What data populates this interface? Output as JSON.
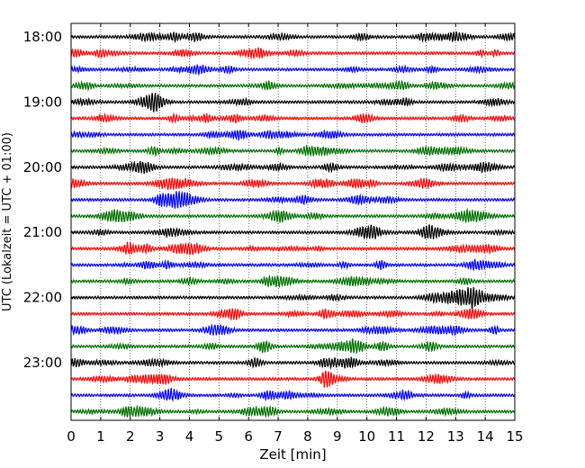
{
  "chart_data": {
    "type": "line",
    "title": "",
    "xlabel": "Zeit  [min]",
    "ylabel": "UTC (Lokalzeit = UTC + 01:00)",
    "xlim": [
      0,
      15
    ],
    "x_ticks": [
      "0",
      "1",
      "2",
      "3",
      "4",
      "5",
      "6",
      "7",
      "8",
      "9",
      "10",
      "11",
      "12",
      "13",
      "14",
      "15"
    ],
    "y_tick_labels": [
      "18:00",
      "19:00",
      "20:00",
      "21:00",
      "22:00",
      "23:00"
    ],
    "grid": "vertical dotted at each minute",
    "trace_interval_minutes": 15,
    "trace_count": 24,
    "first_trace": "18:00",
    "last_trace": "23:45",
    "trace_colors": [
      "#000000",
      "#ff0000",
      "#0000ff",
      "#007000"
    ]
  }
}
